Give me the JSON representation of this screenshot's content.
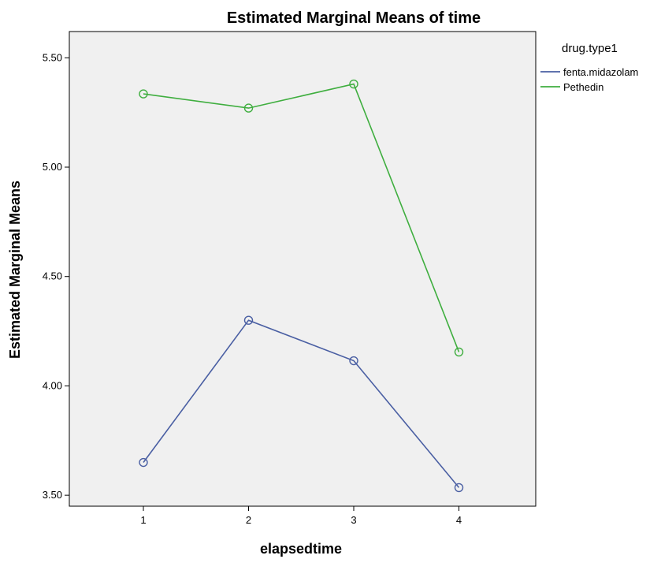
{
  "chart_data": {
    "type": "line",
    "title": "Estimated Marginal Means of time",
    "xlabel": "elapsedtime",
    "ylabel": "Estimated Marginal Means",
    "categories": [
      "1",
      "2",
      "3",
      "4"
    ],
    "ylim": [
      3.45,
      5.62
    ],
    "yticks": [
      3.5,
      4.0,
      4.5,
      5.0,
      5.5
    ],
    "ytick_labels": [
      "3.50",
      "4.00",
      "4.50",
      "5.00",
      "5.50"
    ],
    "grid": false,
    "legend": {
      "title": "drug.type1",
      "placement": "right"
    },
    "plot_background": "#f0f0f0",
    "series": [
      {
        "name": "fenta.midazolam",
        "color": "#4a5fa3",
        "values": [
          3.65,
          4.3,
          4.115,
          3.535
        ]
      },
      {
        "name": "Pethedin",
        "color": "#3fae3f",
        "values": [
          5.335,
          5.27,
          5.38,
          4.155
        ]
      }
    ]
  }
}
